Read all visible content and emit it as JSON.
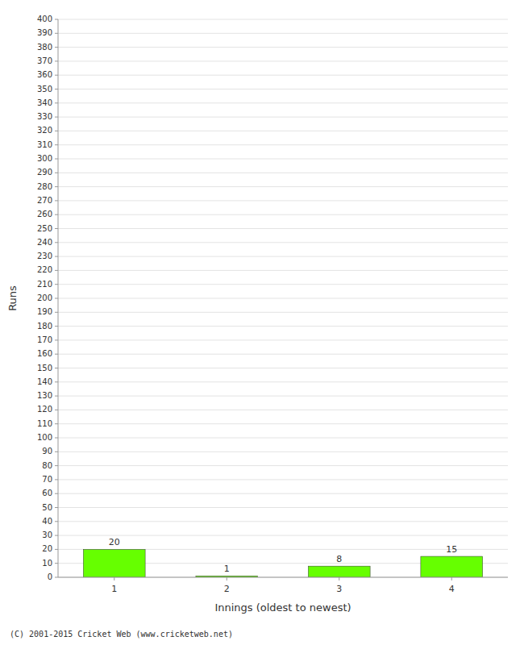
{
  "chart_data": {
    "type": "bar",
    "categories": [
      "1",
      "2",
      "3",
      "4"
    ],
    "values": [
      20,
      1,
      8,
      15
    ],
    "color": "#66ff00",
    "xlabel": "Innings (oldest to newest)",
    "ylabel": "Runs",
    "ylim": [
      0,
      400
    ],
    "yticks": [
      0,
      10,
      20,
      30,
      40,
      50,
      60,
      70,
      80,
      90,
      100,
      110,
      120,
      130,
      140,
      150,
      160,
      170,
      180,
      190,
      200,
      210,
      220,
      230,
      240,
      250,
      260,
      270,
      280,
      290,
      300,
      310,
      320,
      330,
      340,
      350,
      360,
      370,
      380,
      390,
      400
    ],
    "grid": true,
    "data_labels": true,
    "footer": "(C) 2001-2015 Cricket Web (www.cricketweb.net)"
  }
}
